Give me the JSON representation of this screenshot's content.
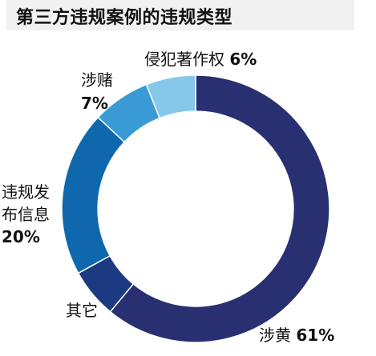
{
  "chart_data": {
    "type": "pie",
    "title": "第三方违规案例的违规类型",
    "categories": [
      "涉黄",
      "其它",
      "违规发布信息",
      "涉赌",
      "侵犯著作权"
    ],
    "values": [
      61,
      6,
      20,
      7,
      6
    ],
    "value_labels": [
      "61%",
      "",
      "20%",
      "7%",
      "6%"
    ],
    "colors": [
      "#293071",
      "#1c3a82",
      "#0f68ad",
      "#3a9ad6",
      "#85c8ea"
    ],
    "inner_radius_ratio": 0.73,
    "legend": "none"
  },
  "labels": {
    "yellow_name": "涉黄",
    "yellow_pct": "61%",
    "other_name": "其它",
    "violation_line1": "违规发",
    "violation_line2": "布信息",
    "violation_pct": "20%",
    "gambling_name": "涉赌",
    "gambling_pct": "7%",
    "copyright_name": "侵犯著作权",
    "copyright_pct": "6%"
  }
}
